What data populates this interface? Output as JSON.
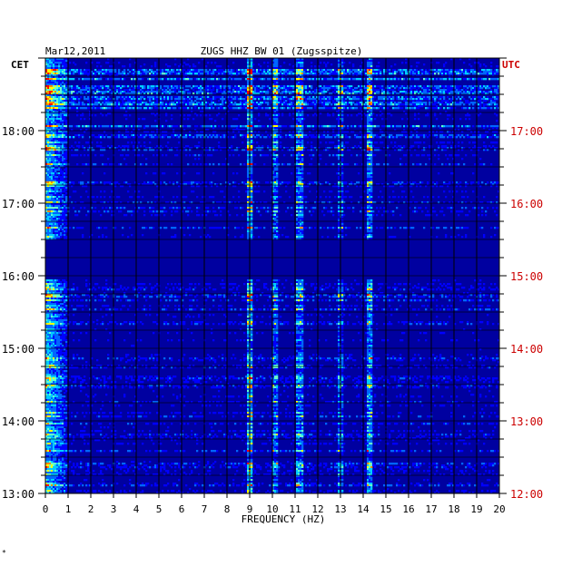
{
  "header": {
    "date": "Mar12,2011",
    "station": "ZUGS HHZ BW 01 (Zugsspitze)",
    "left_zone": "CET",
    "right_zone": "UTC"
  },
  "footer": {
    "mark": "*"
  },
  "colors": {
    "background": "#0000a0",
    "left_axis_text": "#000000",
    "right_axis_text": "#cc0000",
    "grid": "#000000"
  },
  "chart_data": {
    "type": "heatmap",
    "title": "ZUGS HHZ BW 01 (Zugsspitze)",
    "subtitle": "Mar12,2011",
    "xlabel": "FREQUENCY (HZ)",
    "xlim": [
      0,
      20
    ],
    "x_ticks": [
      "0",
      "1",
      "2",
      "3",
      "4",
      "5",
      "6",
      "7",
      "8",
      "9",
      "10",
      "11",
      "12",
      "13",
      "14",
      "15",
      "16",
      "17",
      "18",
      "19",
      "20"
    ],
    "left_axis": {
      "label": "CET",
      "ticks": [
        {
          "hour": 13,
          "label": "13:00"
        },
        {
          "hour": 14,
          "label": "14:00"
        },
        {
          "hour": 15,
          "label": "15:00"
        },
        {
          "hour": 16,
          "label": "16:00"
        },
        {
          "hour": 17,
          "label": "17:00"
        },
        {
          "hour": 18,
          "label": "18:00"
        }
      ]
    },
    "right_axis": {
      "label": "UTC",
      "ticks": [
        {
          "hour": 12,
          "label": "12:00"
        },
        {
          "hour": 13,
          "label": "13:00"
        },
        {
          "hour": 14,
          "label": "14:00"
        },
        {
          "hour": 15,
          "label": "15:00"
        },
        {
          "hour": 16,
          "label": "16:00"
        },
        {
          "hour": 17,
          "label": "17:00"
        }
      ]
    },
    "time_range_cet_hours": [
      13.0,
      19.0
    ],
    "quiet_band_cet_hours": [
      15.95,
      16.5
    ],
    "strong_energy_band_hz": [
      0.0,
      1.0
    ],
    "spectral_lines_hz": [
      {
        "hz": 9.0,
        "strength": 0.85
      },
      {
        "hz": 10.1,
        "strength": 0.55
      },
      {
        "hz": 11.2,
        "strength": 0.6
      },
      {
        "hz": 13.0,
        "strength": 0.45
      },
      {
        "hz": 14.3,
        "strength": 0.7
      }
    ],
    "colormap": [
      "#00008b",
      "#0000ff",
      "#0066ff",
      "#00ccff",
      "#66ffcc",
      "#ffff00",
      "#ff8800",
      "#ff0000"
    ],
    "grid": true
  }
}
